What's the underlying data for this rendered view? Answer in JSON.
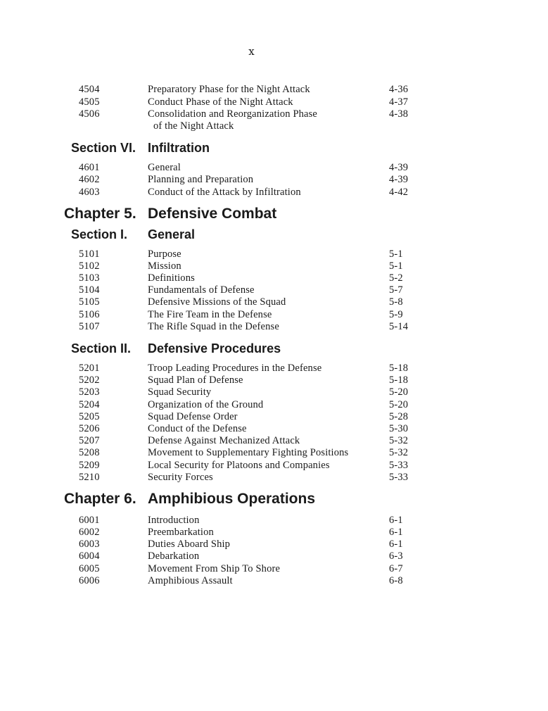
{
  "page_number": "x",
  "blocks": [
    {
      "type": "rows",
      "rows": [
        {
          "num": "4504",
          "title": "Preparatory Phase for the Night Attack",
          "page": "4-36"
        },
        {
          "num": "4505",
          "title": "Conduct Phase of the Night Attack",
          "page": "4-37"
        },
        {
          "num": "4506",
          "title": "Consolidation and Reorganization Phase",
          "page": "4-38"
        },
        {
          "num": "",
          "title": "of the Night Attack",
          "page": "",
          "cont": true
        }
      ]
    },
    {
      "type": "section",
      "label": "Section VI.",
      "title": "Infiltration"
    },
    {
      "type": "rows",
      "rows": [
        {
          "num": "4601",
          "title": "General",
          "page": "4-39"
        },
        {
          "num": "4602",
          "title": "Planning and Preparation",
          "page": "4-39"
        },
        {
          "num": "4603",
          "title": "Conduct of the Attack by Infiltration",
          "page": "4-42"
        }
      ]
    },
    {
      "type": "chapter",
      "label": "Chapter 5.",
      "title": "Defensive Combat"
    },
    {
      "type": "section",
      "label": "Section I.",
      "title": "General"
    },
    {
      "type": "rows",
      "rows": [
        {
          "num": "5101",
          "title": "Purpose",
          "page": "5-1"
        },
        {
          "num": "5102",
          "title": "Mission",
          "page": "5-1"
        },
        {
          "num": "5103",
          "title": "Definitions",
          "page": "5-2"
        },
        {
          "num": "5104",
          "title": "Fundamentals of Defense",
          "page": "5-7"
        },
        {
          "num": "5105",
          "title": "Defensive Missions of the Squad",
          "page": "5-8"
        },
        {
          "num": "5106",
          "title": "The Fire Team in the Defense",
          "page": "5-9"
        },
        {
          "num": "5107",
          "title": "The Rifle Squad in the Defense",
          "page": "5-14"
        }
      ]
    },
    {
      "type": "section",
      "label": "Section II.",
      "title": "Defensive Procedures"
    },
    {
      "type": "rows",
      "rows": [
        {
          "num": "5201",
          "title": "Troop Leading Procedures in the Defense",
          "page": "5-18"
        },
        {
          "num": "5202",
          "title": "Squad Plan of Defense",
          "page": "5-18"
        },
        {
          "num": "5203",
          "title": "Squad Security",
          "page": "5-20"
        },
        {
          "num": "5204",
          "title": "Organization of the Ground",
          "page": "5-20"
        },
        {
          "num": "5205",
          "title": "Squad Defense Order",
          "page": "5-28"
        },
        {
          "num": "5206",
          "title": "Conduct of the Defense",
          "page": "5-30"
        },
        {
          "num": "5207",
          "title": "Defense Against Mechanized Attack",
          "page": "5-32"
        },
        {
          "num": "5208",
          "title": "Movement to Supplementary Fighting Positions",
          "page": "5-32"
        },
        {
          "num": "5209",
          "title": "Local Security for Platoons and Companies",
          "page": "5-33"
        },
        {
          "num": "5210",
          "title": "Security Forces",
          "page": "5-33"
        }
      ]
    },
    {
      "type": "chapter",
      "label": "Chapter 6.",
      "title": "Amphibious Operations"
    },
    {
      "type": "rows",
      "rows": [
        {
          "num": "6001",
          "title": "Introduction",
          "page": "6-1"
        },
        {
          "num": "6002",
          "title": "Preembarkation",
          "page": "6-1"
        },
        {
          "num": "6003",
          "title": "Duties Aboard Ship",
          "page": "6-1"
        },
        {
          "num": "6004",
          "title": "Debarkation",
          "page": "6-3"
        },
        {
          "num": "6005",
          "title": "Movement From Ship To Shore",
          "page": "6-7"
        },
        {
          "num": "6006",
          "title": "Amphibious Assault",
          "page": "6-8"
        }
      ]
    }
  ]
}
